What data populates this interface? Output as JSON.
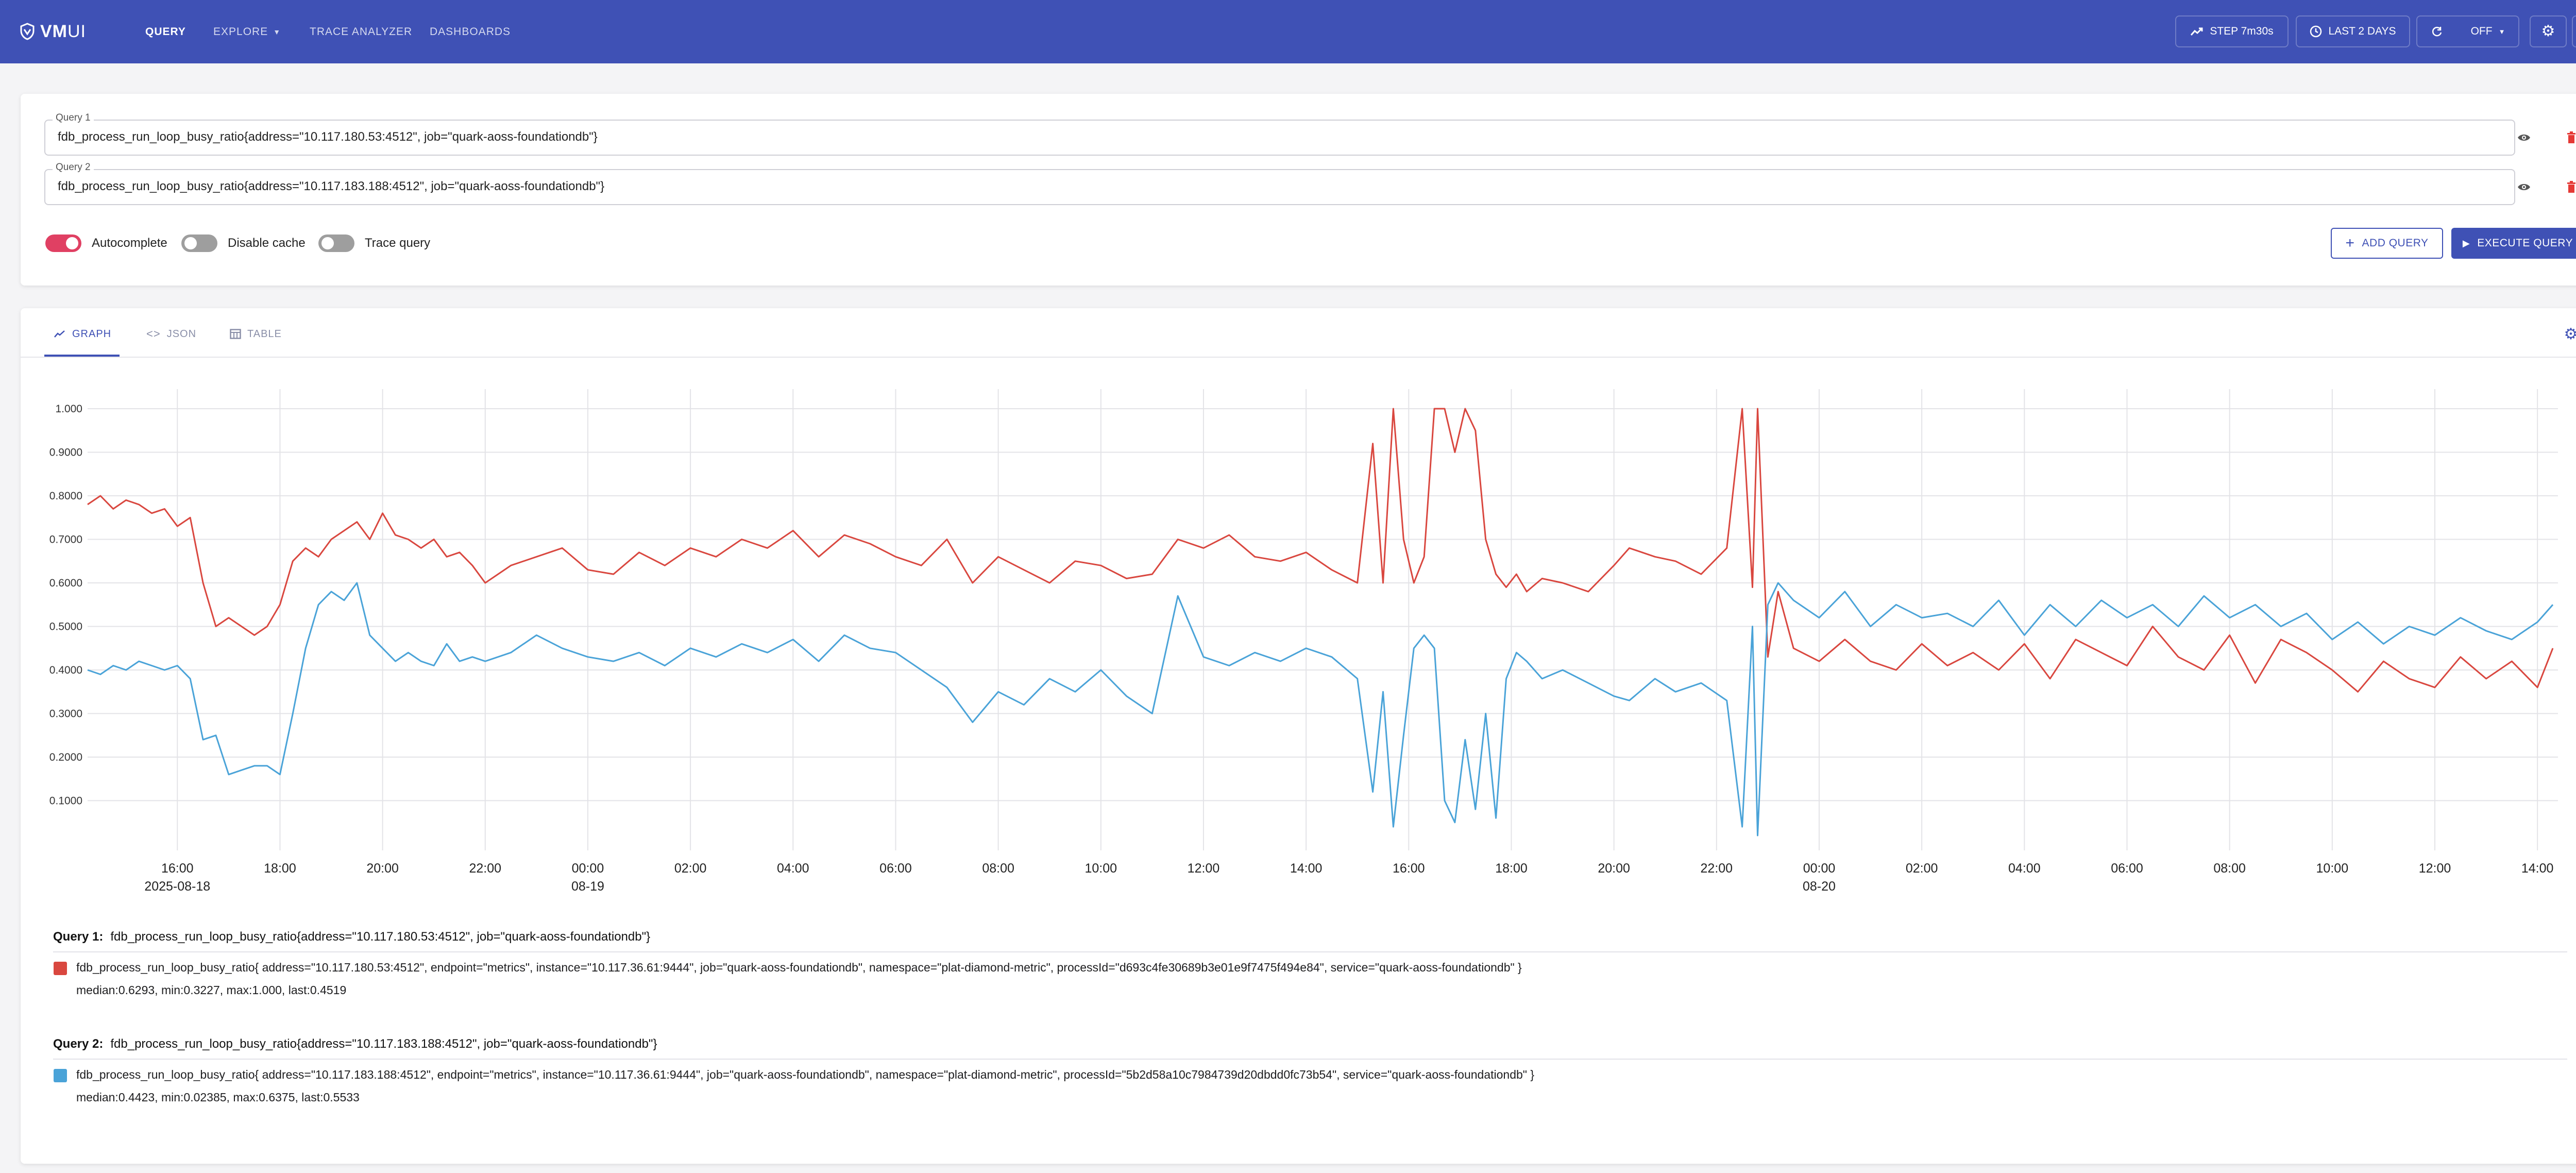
{
  "header": {
    "logo_text": "VM",
    "logo_suffix": "UI",
    "nav": [
      {
        "label": "QUERY",
        "active": true
      },
      {
        "label": "EXPLORE",
        "active": false
      },
      {
        "label": "TRACE ANALYZER",
        "active": false
      },
      {
        "label": "DASHBOARDS",
        "active": false
      }
    ],
    "step_label": "STEP 7m30s",
    "range_label": "LAST 2 DAYS",
    "refresh_label": "OFF",
    "background": "#3f51b5"
  },
  "queries": [
    {
      "label": "Query 1",
      "value": "fdb_process_run_loop_busy_ratio{address=\"10.117.180.53:4512\", job=\"quark-aoss-foundationdb\"}"
    },
    {
      "label": "Query 2",
      "value": "fdb_process_run_loop_busy_ratio{address=\"10.117.183.188:4512\", job=\"quark-aoss-foundationdb\"}"
    }
  ],
  "toggles": [
    {
      "label": "Autocomplete",
      "on": true
    },
    {
      "label": "Disable cache",
      "on": false
    },
    {
      "label": "Trace query",
      "on": false
    }
  ],
  "buttons": {
    "add_query": "ADD QUERY",
    "execute_query": "EXECUTE QUERY"
  },
  "tabs": [
    {
      "label": "GRAPH",
      "active": true
    },
    {
      "label": "JSON",
      "active": false
    },
    {
      "label": "TABLE",
      "active": false
    }
  ],
  "chart_data": {
    "type": "line",
    "yticks": [
      "1.000",
      "0.9000",
      "0.8000",
      "0.7000",
      "0.6000",
      "0.5000",
      "0.4000",
      "0.3000",
      "0.2000",
      "0.1000"
    ],
    "ylim": [
      0,
      1.0
    ],
    "xticks": [
      {
        "t": 16,
        "label": "16:00",
        "date": "2025-08-18"
      },
      {
        "t": 18,
        "label": "18:00"
      },
      {
        "t": 20,
        "label": "20:00"
      },
      {
        "t": 22,
        "label": "22:00"
      },
      {
        "t": 24,
        "label": "00:00",
        "date": "08-19"
      },
      {
        "t": 26,
        "label": "02:00"
      },
      {
        "t": 28,
        "label": "04:00"
      },
      {
        "t": 30,
        "label": "06:00"
      },
      {
        "t": 32,
        "label": "08:00"
      },
      {
        "t": 34,
        "label": "10:00"
      },
      {
        "t": 36,
        "label": "12:00"
      },
      {
        "t": 38,
        "label": "14:00"
      },
      {
        "t": 40,
        "label": "16:00"
      },
      {
        "t": 42,
        "label": "18:00"
      },
      {
        "t": 44,
        "label": "20:00"
      },
      {
        "t": 46,
        "label": "22:00"
      },
      {
        "t": 48,
        "label": "00:00",
        "date": "08-20"
      },
      {
        "t": 50,
        "label": "02:00"
      },
      {
        "t": 52,
        "label": "04:00"
      },
      {
        "t": 54,
        "label": "06:00"
      },
      {
        "t": 56,
        "label": "08:00"
      },
      {
        "t": 58,
        "label": "10:00"
      },
      {
        "t": 60,
        "label": "12:00"
      },
      {
        "t": 62,
        "label": "14:00"
      }
    ],
    "xlim": [
      14.25,
      62.4
    ],
    "grid": true,
    "series": [
      {
        "name": "fdb_process_run_loop_busy_ratio{address=\"10.117.180.53:4512\", endpoint=\"metrics\", instance=\"10.117.36.61:9444\", job=\"quark-aoss-foundationdb\", namespace=\"plat-diamond-metric\", processId=\"d693c4fe30689b3e01e9f7475f494e84\", service=\"quark-aoss-foundationdb\" }",
        "color": "#d9473f",
        "x": [
          14.25,
          14.5,
          14.75,
          15.0,
          15.25,
          15.5,
          15.75,
          16.0,
          16.25,
          16.5,
          16.75,
          17.0,
          17.25,
          17.5,
          17.75,
          18.0,
          18.25,
          18.5,
          18.75,
          19.0,
          19.25,
          19.5,
          19.75,
          20.0,
          20.25,
          20.5,
          20.75,
          21.0,
          21.25,
          21.5,
          21.75,
          22.0,
          22.5,
          23.0,
          23.5,
          24.0,
          24.5,
          25.0,
          25.5,
          26.0,
          26.5,
          27.0,
          27.5,
          28.0,
          28.5,
          29.0,
          29.5,
          30.0,
          30.5,
          31.0,
          31.5,
          32.0,
          32.5,
          33.0,
          33.5,
          34.0,
          34.5,
          35.0,
          35.5,
          36.0,
          36.5,
          37.0,
          37.5,
          38.0,
          38.5,
          39.0,
          39.3,
          39.5,
          39.7,
          39.9,
          40.1,
          40.3,
          40.5,
          40.7,
          40.9,
          41.1,
          41.3,
          41.5,
          41.7,
          41.9,
          42.1,
          42.3,
          42.6,
          43.0,
          43.5,
          44.0,
          44.3,
          44.8,
          45.2,
          45.7,
          46.2,
          46.5,
          46.7,
          46.8,
          47.0,
          47.2,
          47.5,
          48.0,
          48.5,
          49.0,
          49.5,
          50.0,
          50.5,
          51.0,
          51.5,
          52.0,
          52.5,
          53.0,
          53.5,
          54.0,
          54.5,
          55.0,
          55.5,
          56.0,
          56.5,
          57.0,
          57.5,
          58.0,
          58.5,
          59.0,
          59.5,
          60.0,
          60.5,
          61.0,
          61.5,
          62.0,
          62.3
        ],
        "y": [
          0.78,
          0.8,
          0.77,
          0.79,
          0.78,
          0.76,
          0.77,
          0.73,
          0.75,
          0.6,
          0.5,
          0.52,
          0.5,
          0.48,
          0.5,
          0.55,
          0.65,
          0.68,
          0.66,
          0.7,
          0.72,
          0.74,
          0.7,
          0.76,
          0.71,
          0.7,
          0.68,
          0.7,
          0.66,
          0.67,
          0.64,
          0.6,
          0.64,
          0.66,
          0.68,
          0.63,
          0.62,
          0.67,
          0.64,
          0.68,
          0.66,
          0.7,
          0.68,
          0.72,
          0.66,
          0.71,
          0.69,
          0.66,
          0.64,
          0.7,
          0.6,
          0.66,
          0.63,
          0.6,
          0.65,
          0.64,
          0.61,
          0.62,
          0.7,
          0.68,
          0.71,
          0.66,
          0.65,
          0.67,
          0.63,
          0.6,
          0.92,
          0.6,
          1.0,
          0.7,
          0.6,
          0.66,
          1.0,
          1.0,
          0.9,
          1.0,
          0.95,
          0.7,
          0.62,
          0.59,
          0.62,
          0.58,
          0.61,
          0.6,
          0.58,
          0.64,
          0.68,
          0.66,
          0.65,
          0.62,
          0.68,
          1.0,
          0.59,
          1.0,
          0.43,
          0.58,
          0.45,
          0.42,
          0.47,
          0.42,
          0.4,
          0.46,
          0.41,
          0.44,
          0.4,
          0.46,
          0.38,
          0.47,
          0.44,
          0.41,
          0.5,
          0.43,
          0.4,
          0.48,
          0.37,
          0.47,
          0.44,
          0.4,
          0.35,
          0.42,
          0.38,
          0.36,
          0.43,
          0.38,
          0.42,
          0.36,
          0.45
        ]
      },
      {
        "name": "fdb_process_run_loop_busy_ratio{address=\"10.117.183.188:4512\", endpoint=\"metrics\", instance=\"10.117.36.61:9444\", job=\"quark-aoss-foundationdb\", namespace=\"plat-diamond-metric\", processId=\"5b2d58a10c7984739d20dbdd0fc73b54\", service=\"quark-aoss-foundationdb\" }",
        "color": "#4aa3d8",
        "x": [
          14.25,
          14.5,
          14.75,
          15.0,
          15.25,
          15.5,
          15.75,
          16.0,
          16.25,
          16.5,
          16.75,
          17.0,
          17.25,
          17.5,
          17.75,
          18.0,
          18.25,
          18.5,
          18.75,
          19.0,
          19.25,
          19.5,
          19.75,
          20.0,
          20.25,
          20.5,
          20.75,
          21.0,
          21.25,
          21.5,
          21.75,
          22.0,
          22.5,
          23.0,
          23.5,
          24.0,
          24.5,
          25.0,
          25.5,
          26.0,
          26.5,
          27.0,
          27.5,
          28.0,
          28.5,
          29.0,
          29.5,
          30.0,
          30.5,
          31.0,
          31.5,
          32.0,
          32.5,
          33.0,
          33.5,
          34.0,
          34.5,
          35.0,
          35.5,
          36.0,
          36.5,
          37.0,
          37.5,
          38.0,
          38.5,
          39.0,
          39.3,
          39.5,
          39.7,
          39.9,
          40.1,
          40.3,
          40.5,
          40.7,
          40.9,
          41.1,
          41.3,
          41.5,
          41.7,
          41.9,
          42.1,
          42.3,
          42.6,
          43.0,
          43.5,
          44.0,
          44.3,
          44.8,
          45.2,
          45.7,
          46.2,
          46.5,
          46.7,
          46.8,
          47.0,
          47.2,
          47.5,
          48.0,
          48.5,
          49.0,
          49.5,
          50.0,
          50.5,
          51.0,
          51.5,
          52.0,
          52.5,
          53.0,
          53.5,
          54.0,
          54.5,
          55.0,
          55.5,
          56.0,
          56.5,
          57.0,
          57.5,
          58.0,
          58.5,
          59.0,
          59.5,
          60.0,
          60.5,
          61.0,
          61.5,
          62.0,
          62.3
        ],
        "y": [
          0.4,
          0.39,
          0.41,
          0.4,
          0.42,
          0.41,
          0.4,
          0.41,
          0.38,
          0.24,
          0.25,
          0.16,
          0.17,
          0.18,
          0.18,
          0.16,
          0.3,
          0.45,
          0.55,
          0.58,
          0.56,
          0.6,
          0.48,
          0.45,
          0.42,
          0.44,
          0.42,
          0.41,
          0.46,
          0.42,
          0.43,
          0.42,
          0.44,
          0.48,
          0.45,
          0.43,
          0.42,
          0.44,
          0.41,
          0.45,
          0.43,
          0.46,
          0.44,
          0.47,
          0.42,
          0.48,
          0.45,
          0.44,
          0.4,
          0.36,
          0.28,
          0.35,
          0.32,
          0.38,
          0.35,
          0.4,
          0.34,
          0.3,
          0.57,
          0.43,
          0.41,
          0.44,
          0.42,
          0.45,
          0.43,
          0.38,
          0.12,
          0.35,
          0.04,
          0.25,
          0.45,
          0.48,
          0.45,
          0.1,
          0.05,
          0.24,
          0.08,
          0.3,
          0.06,
          0.38,
          0.44,
          0.42,
          0.38,
          0.4,
          0.37,
          0.34,
          0.33,
          0.38,
          0.35,
          0.37,
          0.33,
          0.04,
          0.5,
          0.02,
          0.55,
          0.6,
          0.56,
          0.52,
          0.58,
          0.5,
          0.55,
          0.52,
          0.53,
          0.5,
          0.56,
          0.48,
          0.55,
          0.5,
          0.56,
          0.52,
          0.55,
          0.5,
          0.57,
          0.52,
          0.55,
          0.5,
          0.53,
          0.47,
          0.51,
          0.46,
          0.5,
          0.48,
          0.52,
          0.49,
          0.47,
          0.51,
          0.55
        ]
      }
    ]
  },
  "legend": [
    {
      "query_label": "Query 1:",
      "query_expr": "fdb_process_run_loop_busy_ratio{address=\"10.117.180.53:4512\", job=\"quark-aoss-foundationdb\"}",
      "series_label": "fdb_process_run_loop_busy_ratio{ address=\"10.117.180.53:4512\", endpoint=\"metrics\", instance=\"10.117.36.61:9444\", job=\"quark-aoss-foundationdb\", namespace=\"plat-diamond-metric\", processId=\"d693c4fe30689b3e01e9f7475f494e84\", service=\"quark-aoss-foundationdb\" }",
      "stats": "median:0.6293, min:0.3227, max:1.000, last:0.4519",
      "color": "#d9473f"
    },
    {
      "query_label": "Query 2:",
      "query_expr": "fdb_process_run_loop_busy_ratio{address=\"10.117.183.188:4512\", job=\"quark-aoss-foundationdb\"}",
      "series_label": "fdb_process_run_loop_busy_ratio{ address=\"10.117.183.188:4512\", endpoint=\"metrics\", instance=\"10.117.36.61:9444\", job=\"quark-aoss-foundationdb\", namespace=\"plat-diamond-metric\", processId=\"5b2d58a10c7984739d20dbdd0fc73b54\", service=\"quark-aoss-foundationdb\" }",
      "stats": "median:0.4423, min:0.02385, max:0.6375, last:0.5533",
      "color": "#4aa3d8"
    }
  ]
}
